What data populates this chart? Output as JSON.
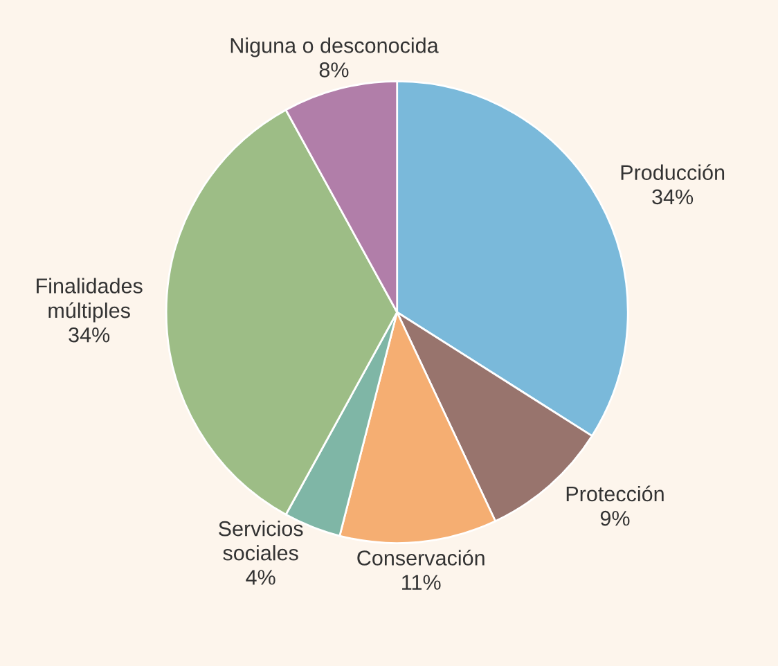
{
  "chart_data": {
    "type": "pie",
    "categories": [
      "Producción",
      "Protección",
      "Conservación",
      "Servicios\nsociales",
      "Finalidades\nmúltiples",
      "Niguna o desconocida"
    ],
    "values": [
      34,
      9,
      11,
      4,
      34,
      8
    ],
    "value_labels": [
      "34%",
      "9%",
      "11%",
      "4%",
      "34%",
      "8%"
    ],
    "colors": [
      "#7ab9da",
      "#98746d",
      "#f5ae72",
      "#7fb6a6",
      "#9dbd86",
      "#b17ea9"
    ]
  }
}
